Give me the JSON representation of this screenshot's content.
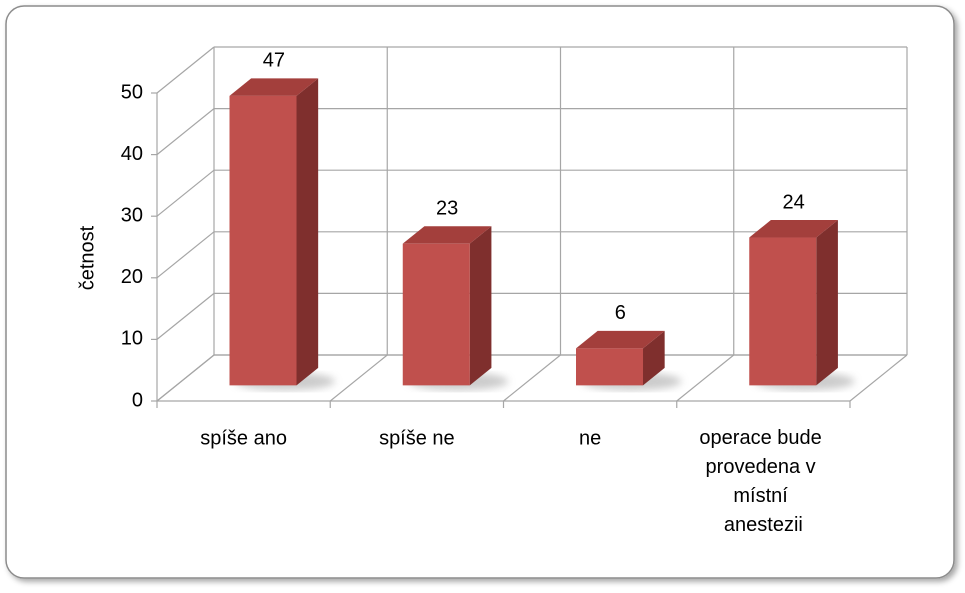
{
  "chart_data": {
    "type": "bar3d",
    "y_label": "četnost",
    "categories": [
      "spíše ano",
      "spíše ne",
      "ne",
      "operace bude provedena v místní anestezii"
    ],
    "values": [
      47,
      23,
      6,
      24
    ],
    "color": "#c0504d",
    "ylim": [
      0,
      50
    ],
    "yticks": [
      0,
      10,
      20,
      30,
      40,
      50
    ],
    "grid": true
  }
}
